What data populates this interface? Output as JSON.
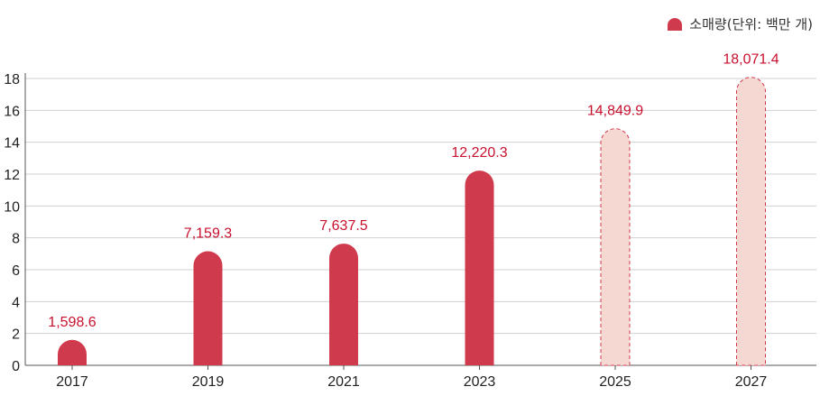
{
  "chart_data": {
    "type": "bar",
    "categories": [
      "2017",
      "2019",
      "2021",
      "2023",
      "2025",
      "2027"
    ],
    "values": [
      1598.6,
      7159.3,
      7637.5,
      12220.3,
      14849.9,
      18071.4
    ],
    "value_labels": [
      "1,598.6",
      "7,159.3",
      "7,637.5",
      "12,220.3",
      "14,849.9",
      "18,071.4"
    ],
    "forecast": [
      false,
      false,
      false,
      false,
      true,
      true
    ],
    "legend": {
      "label": "소매량(단위: 백만 개)",
      "placement": "top-right"
    },
    "y_ticks": [
      "0",
      "2",
      "4",
      "6",
      "8",
      "10",
      "12",
      "14",
      "16",
      "18"
    ],
    "ylim": [
      0,
      18
    ],
    "y_display_divisor": 1000,
    "grid": true,
    "colors": {
      "actual": "#d03a4d",
      "forecast_fill": "#f6d8d3",
      "forecast_stroke": "#d03a4d",
      "label": "#c8102e",
      "grid": "#d0d0d0",
      "axis": "#555555"
    }
  }
}
